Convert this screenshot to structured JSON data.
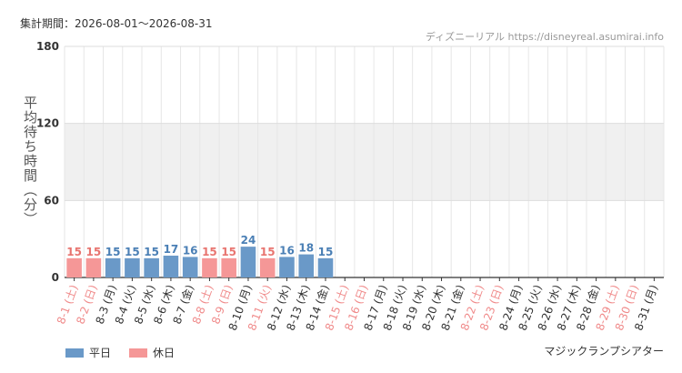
{
  "header": {
    "period": "集計期間：2026-08-01〜2026-08-31",
    "credit": "ディズニーリアル https://disneyreal.asumirai.info"
  },
  "caption": "マジックランプシアター",
  "legend": [
    {
      "label": "平日",
      "color": "#6a99c8"
    },
    {
      "label": "休日",
      "color": "#f59797"
    }
  ],
  "chart_data": {
    "type": "bar",
    "ylabel": "平均待ち時間（分）",
    "ylim": [
      0,
      180
    ],
    "yticks": [
      0,
      60,
      120,
      180
    ],
    "shaded_band": [
      60,
      120
    ],
    "categories": [
      "8-1 (土)",
      "8-2 (日)",
      "8-3 (月)",
      "8-4 (火)",
      "8-5 (水)",
      "8-6 (木)",
      "8-7 (金)",
      "8-8 (土)",
      "8-9 (日)",
      "8-10 (月)",
      "8-11 (火)",
      "8-12 (水)",
      "8-13 (木)",
      "8-14 (金)",
      "8-15 (土)",
      "8-16 (日)",
      "8-17 (月)",
      "8-18 (火)",
      "8-19 (水)",
      "8-20 (木)",
      "8-21 (金)",
      "8-22 (土)",
      "8-23 (日)",
      "8-24 (月)",
      "8-25 (火)",
      "8-26 (水)",
      "8-27 (木)",
      "8-28 (金)",
      "8-29 (土)",
      "8-30 (日)",
      "8-31 (月)"
    ],
    "holiday": [
      true,
      true,
      false,
      false,
      false,
      false,
      false,
      true,
      true,
      false,
      true,
      false,
      false,
      false,
      true,
      true,
      false,
      false,
      false,
      false,
      false,
      true,
      true,
      false,
      false,
      false,
      false,
      false,
      true,
      true,
      false
    ],
    "values": [
      15,
      15,
      15,
      15,
      15,
      17,
      16,
      15,
      15,
      24,
      15,
      16,
      18,
      15,
      null,
      null,
      null,
      null,
      null,
      null,
      null,
      null,
      null,
      null,
      null,
      null,
      null,
      null,
      null,
      null,
      null
    ],
    "colors": {
      "weekday": "#6a99c8",
      "holiday": "#f59797",
      "weekday_label": "#4a7fb5",
      "holiday_label": "#e8746f",
      "weekday_text": "#333333",
      "holiday_text": "#f08a8a"
    }
  }
}
